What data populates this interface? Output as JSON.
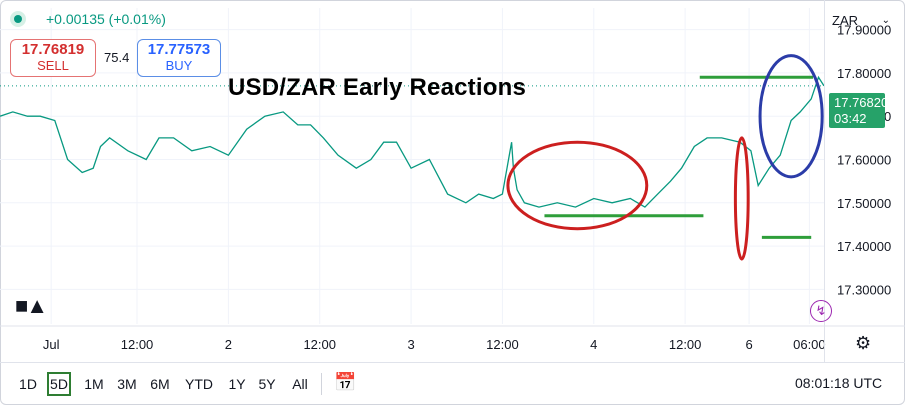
{
  "header": {
    "change": "+0.00135 (+0.01%)",
    "sell_price": "17.76819",
    "sell_label": "SELL",
    "spread": "75.4",
    "buy_price": "17.77573",
    "buy_label": "BUY",
    "currency": "ZAR"
  },
  "annotation_title": "USD/ZAR Early Reactions",
  "price_label": {
    "price": "17.76820",
    "countdown": "03:42"
  },
  "ranges": [
    "1D",
    "5D",
    "1M",
    "3M",
    "6M",
    "YTD",
    "1Y",
    "5Y",
    "All"
  ],
  "active_range": "5D",
  "clock": "08:01:18 UTC",
  "colors": {
    "line": "#089981",
    "annotation_green": "#2e9e3a",
    "annotation_red": "#cc1f1f",
    "annotation_blue": "#2b3ca8",
    "price_label": "#26a269"
  },
  "icons": {
    "status": "dot-icon",
    "dropdown": "chevron-down-icon",
    "logo": "tradingview-logo-icon",
    "compare": "calendar-compare-icon",
    "flash": "flash-icon",
    "settings": "gear-icon"
  },
  "chart_data": {
    "type": "line",
    "xlabel": "",
    "ylabel": "",
    "ylim": [
      17.22,
      17.95
    ],
    "y_ticks": [
      17.3,
      17.4,
      17.5,
      17.6,
      17.7,
      17.8,
      17.9
    ],
    "y_tick_labels": [
      "17.30000",
      "17.40000",
      "17.50000",
      "17.60000",
      "17.70000",
      "17.80000",
      "17.90000"
    ],
    "x_ticks": [
      {
        "label": "Jul",
        "t": 0.03
      },
      {
        "label": "12:00",
        "t": 0.5
      },
      {
        "label": "2",
        "t": 1.0
      },
      {
        "label": "12:00",
        "t": 1.5
      },
      {
        "label": "3",
        "t": 2.0
      },
      {
        "label": "12:00",
        "t": 2.5
      },
      {
        "label": "4",
        "t": 3.0
      },
      {
        "label": "12:00",
        "t": 3.5
      },
      {
        "label": "6",
        "t": 3.85
      },
      {
        "label": "06:00",
        "t": 4.18
      }
    ],
    "x_range": [
      -0.25,
      4.26
    ],
    "series": [
      {
        "x": [
          -0.25,
          -0.18,
          -0.1,
          -0.03,
          0.05,
          0.12,
          0.2,
          0.26,
          0.3,
          0.35,
          0.45,
          0.55,
          0.62,
          0.7,
          0.8,
          0.9,
          1.0,
          1.1,
          1.2,
          1.3,
          1.38,
          1.45,
          1.52,
          1.6,
          1.7,
          1.78,
          1.85,
          1.92,
          2.0,
          2.1,
          2.2,
          2.3,
          2.37,
          2.45,
          2.5,
          2.55,
          2.56,
          2.58,
          2.62,
          2.7,
          2.8,
          2.9,
          3.0,
          3.1,
          3.2,
          3.28,
          3.35,
          3.42,
          3.48,
          3.55,
          3.62,
          3.7,
          3.8,
          3.86,
          3.9,
          3.96,
          4.02,
          4.08,
          4.13,
          4.19,
          4.23,
          4.26
        ],
        "y": [
          17.7,
          17.71,
          17.7,
          17.7,
          17.69,
          17.6,
          17.57,
          17.58,
          17.63,
          17.65,
          17.62,
          17.6,
          17.65,
          17.65,
          17.62,
          17.63,
          17.61,
          17.67,
          17.7,
          17.71,
          17.68,
          17.68,
          17.65,
          17.61,
          17.58,
          17.6,
          17.64,
          17.64,
          17.58,
          17.6,
          17.52,
          17.5,
          17.52,
          17.51,
          17.52,
          17.64,
          17.58,
          17.53,
          17.5,
          17.49,
          17.5,
          17.49,
          17.51,
          17.5,
          17.51,
          17.49,
          17.52,
          17.55,
          17.58,
          17.63,
          17.65,
          17.65,
          17.64,
          17.62,
          17.54,
          17.58,
          17.61,
          17.69,
          17.71,
          17.74,
          17.79,
          17.77
        ]
      }
    ],
    "annotations": {
      "green_lines": [
        {
          "x": [
            3.58,
            4.2
          ],
          "y": 17.79
        },
        {
          "x": [
            2.73,
            3.6
          ],
          "y": 17.47
        },
        {
          "x": [
            3.92,
            4.19
          ],
          "y": 17.42
        }
      ],
      "red_ellipses": [
        {
          "cx": 2.91,
          "cy": 17.54,
          "rx": 0.38,
          "ry": 0.1
        },
        {
          "cx": 3.81,
          "cy": 17.51,
          "rx": 0.035,
          "ry": 0.14
        }
      ],
      "blue_ellipses": [
        {
          "cx": 4.08,
          "cy": 17.7,
          "rx": 0.17,
          "ry": 0.14
        }
      ]
    }
  }
}
